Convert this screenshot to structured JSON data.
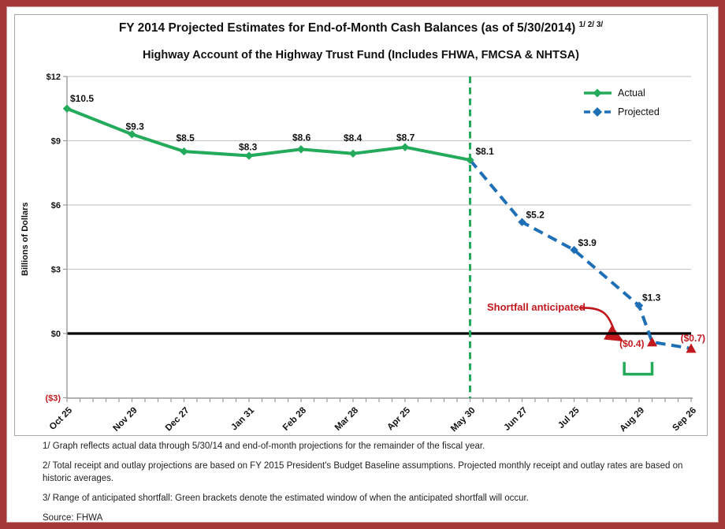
{
  "chart": {
    "title_main": "FY 2014 Projected Estimates for End-of-Month Cash Balances (as of 5/30/2014) ",
    "title_sup": "1/ 2/ 3/",
    "subtitle": "Highway Account of the Highway Trust Fund (Includes FHWA, FMCSA & NHTSA)",
    "ylabel": "Billions of Dollars",
    "legend": [
      {
        "label": "Actual",
        "style": "solid",
        "color": "#23AA5A"
      },
      {
        "label": "Projected",
        "style": "dashed",
        "color": "#1E6FB5"
      }
    ],
    "annotations": {
      "shortfall_text": "Shortfall anticipated"
    },
    "colors": {
      "actual": "#23AA5A",
      "projected": "#1E6FB5",
      "shortfall_red": "#C2181D",
      "divider_green": "#23AA5A",
      "frame_red": "#A23737",
      "gridline": "#C9C9C9",
      "axis": "#999999",
      "zero_line": "#000000"
    }
  },
  "chart_data": {
    "type": "line",
    "title": "FY 2014 Projected Estimates for End-of-Month Cash Balances (as of 5/30/2014)",
    "subtitle": "Highway Account of the Highway Trust Fund (Includes FHWA, FMCSA & NHTSA)",
    "xlabel": "",
    "ylabel": "Billions of Dollars",
    "ylim": [
      -3,
      12
    ],
    "x_axis": {
      "categories": [
        {
          "label": "Oct 25",
          "day": 0
        },
        {
          "label": "Nov 29",
          "day": 35
        },
        {
          "label": "Dec 27",
          "day": 63
        },
        {
          "label": "Jan 31",
          "day": 98
        },
        {
          "label": "Feb 28",
          "day": 126
        },
        {
          "label": "Mar 28",
          "day": 154
        },
        {
          "label": "Apr 25",
          "day": 182
        },
        {
          "label": "May 30",
          "day": 217
        },
        {
          "label": "Jun 27",
          "day": 245
        },
        {
          "label": "Jul 25",
          "day": 273
        },
        {
          "label": "Aug 29",
          "day": 308
        },
        {
          "label": "Sep 26",
          "day": 336
        }
      ],
      "minor_tick_every_days": 7,
      "total_days": 336
    },
    "y_axis": {
      "ticks": [
        {
          "label": "$12",
          "value": 12
        },
        {
          "label": "$9",
          "value": 9
        },
        {
          "label": "$6",
          "value": 6
        },
        {
          "label": "$3",
          "value": 3
        },
        {
          "label": "$0",
          "value": 0
        },
        {
          "label": "($3)",
          "value": -3,
          "red": true
        }
      ],
      "gridlines": [
        3,
        6,
        9,
        12
      ]
    },
    "divider_day": 217,
    "series": [
      {
        "name": "Actual",
        "color": "#23AA5A",
        "style": "solid",
        "points": [
          {
            "x": "Oct 25",
            "day": 0,
            "value": 10.5,
            "label": "$10.5",
            "marker": "diamond",
            "dx": 4,
            "dy": -9
          },
          {
            "x": "Nov 29",
            "day": 35,
            "value": 9.3,
            "label": "$9.3",
            "marker": "diamond",
            "dx": -8,
            "dy": -6
          },
          {
            "x": "Dec 27",
            "day": 63,
            "value": 8.5,
            "label": "$8.5",
            "marker": "diamond",
            "dx": -10,
            "dy": -13
          },
          {
            "x": "Jan 31",
            "day": 98,
            "value": 8.3,
            "label": "$8.3",
            "marker": "diamond",
            "dx": -13,
            "dy": -7
          },
          {
            "x": "Feb 28",
            "day": 126,
            "value": 8.6,
            "label": "$8.6",
            "marker": "diamond",
            "dx": -11,
            "dy": -11
          },
          {
            "x": "Mar 28",
            "day": 154,
            "value": 8.4,
            "label": "$8.4",
            "marker": "diamond",
            "dx": -12,
            "dy": -16
          },
          {
            "x": "Apr 25",
            "day": 182,
            "value": 8.7,
            "label": "$8.7",
            "marker": "diamond",
            "dx": -11,
            "dy": -8
          },
          {
            "x": "May 30",
            "day": 217,
            "value": 8.1,
            "label": "$8.1",
            "marker": "diamond",
            "dx": 7,
            "dy": -7
          }
        ]
      },
      {
        "name": "Projected",
        "color": "#1E6FB5",
        "style": "dashed",
        "points": [
          {
            "x": "May 30",
            "day": 217,
            "value": 8.1,
            "marker": "none"
          },
          {
            "x": "Jun 27",
            "day": 245,
            "value": 5.2,
            "label": "$5.2",
            "marker": "diamond",
            "dx": 5,
            "dy": -5
          },
          {
            "x": "Jul 25",
            "day": 273,
            "value": 3.9,
            "label": "$3.9",
            "marker": "diamond",
            "dx": 5,
            "dy": -5
          },
          {
            "x": "Aug 29",
            "day": 308,
            "value": 1.3,
            "label": "$1.3",
            "marker": "diamond",
            "dx": 4,
            "dy": -6
          },
          {
            "x": "",
            "day": 315,
            "value": -0.4,
            "label": "($0.4)",
            "marker": "triangle",
            "dx": -10,
            "dy": 6,
            "anchor": "end",
            "label_color": "#C2181D"
          },
          {
            "x": "Sep 26",
            "day": 336,
            "value": -0.7,
            "label": "($0.7)",
            "marker": "triangle",
            "dx": 18,
            "dy": -9,
            "anchor": "end",
            "label_color": "#C2181D"
          }
        ]
      }
    ],
    "shortfall_bracket": {
      "from_day": 300,
      "to_day": 315,
      "top_value": -1.33,
      "bottom_value": -1.9
    },
    "legend_position": "top-right",
    "grid": true
  },
  "footnotes": {
    "fn1": "1/ Graph reflects actual data through 5/30/14 and end-of-month projections for the remainder of the fiscal year.",
    "fn2": "2/ Total receipt and outlay projections are based on FY 2015 President's Budget Baseline assumptions.  Projected monthly receipt and outlay rates are based on historic averages.",
    "fn3": "3/ Range of anticipated shortfall: Green brackets denote the estimated window of when the anticipated shortfall will occur.",
    "source": "Source: FHWA"
  }
}
